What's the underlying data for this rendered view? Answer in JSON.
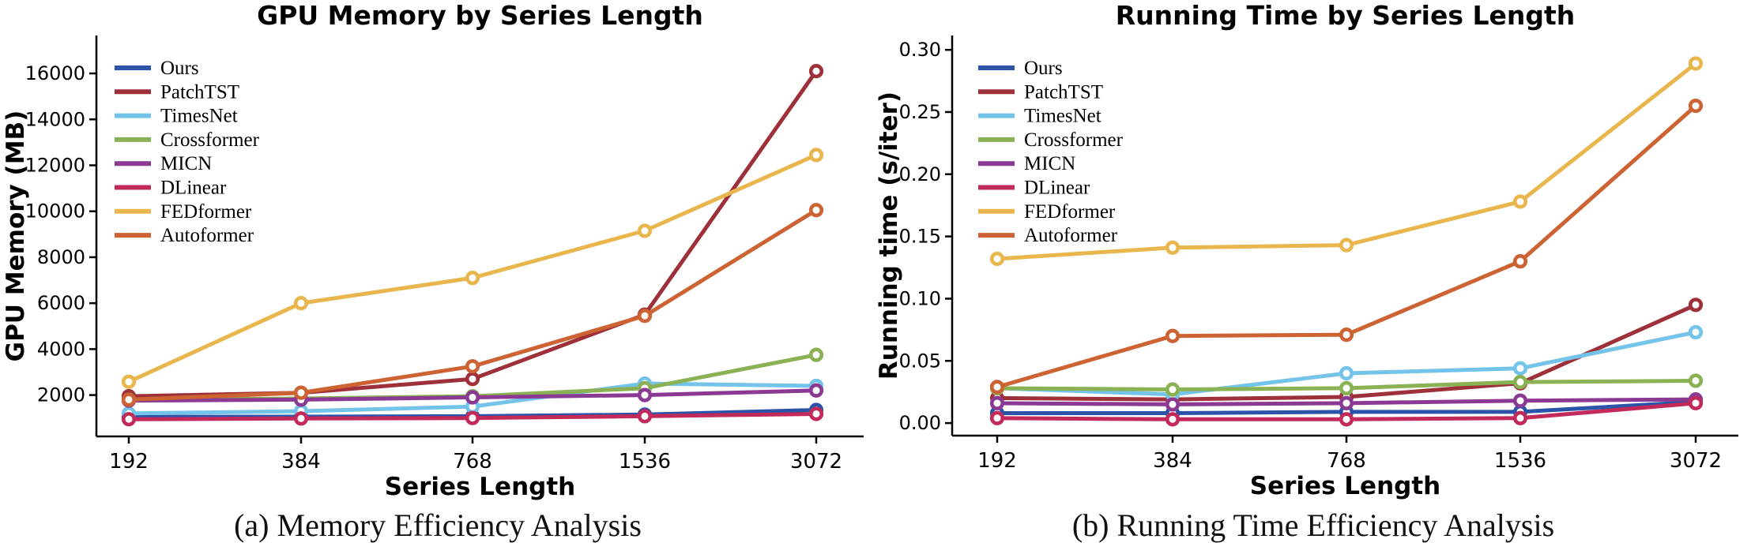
{
  "figure": {
    "background": "#ffffff",
    "captions": [
      "(a) Memory Efficiency Analysis",
      "(b) Running Time Efficiency Analysis"
    ]
  },
  "chart_data": [
    {
      "type": "line",
      "title": "GPU Memory by Series Length",
      "xlabel": "Series Length",
      "ylabel": "GPU Memory (MB)",
      "categories": [
        "192",
        "384",
        "768",
        "1536",
        "3072"
      ],
      "yticks": {
        "values": [
          2000,
          4000,
          6000,
          8000,
          10000,
          12000,
          14000,
          16000
        ],
        "labels": [
          "2000",
          "4000",
          "6000",
          "8000",
          "10000",
          "12000",
          "14000",
          "16000"
        ]
      },
      "ylim": [
        200,
        17650
      ],
      "grid": false,
      "legend_position": "upper left",
      "marker": "circle-open",
      "caption": "(a) Memory Efficiency Analysis",
      "series": [
        {
          "name": "Ours",
          "color": "#2b54a8",
          "values": [
            1050,
            1060,
            1080,
            1150,
            1350
          ]
        },
        {
          "name": "PatchTST",
          "color": "#9e3039",
          "values": [
            1950,
            2100,
            2700,
            5500,
            16100
          ]
        },
        {
          "name": "TimesNet",
          "color": "#74c3e8",
          "values": [
            1200,
            1300,
            1500,
            2500,
            2400
          ]
        },
        {
          "name": "Crossformer",
          "color": "#8ab254",
          "values": [
            1800,
            1850,
            1950,
            2300,
            3750
          ]
        },
        {
          "name": "MICN",
          "color": "#8a3a92",
          "values": [
            1760,
            1800,
            1900,
            2000,
            2200
          ]
        },
        {
          "name": "DLinear",
          "color": "#c22a5a",
          "values": [
            950,
            980,
            1000,
            1080,
            1180
          ]
        },
        {
          "name": "FEDformer",
          "color": "#e9b64d",
          "values": [
            2580,
            6000,
            7100,
            9150,
            12450
          ]
        },
        {
          "name": "Autoformer",
          "color": "#cd6232",
          "values": [
            1800,
            2100,
            3250,
            5450,
            10050
          ]
        }
      ]
    },
    {
      "type": "line",
      "title": "Running Time by Series Length",
      "xlabel": "Series Length",
      "ylabel": "Running time (s/iter)",
      "categories": [
        "192",
        "384",
        "768",
        "1536",
        "3072"
      ],
      "yticks": {
        "values": [
          0.0,
          0.05,
          0.1,
          0.15,
          0.2,
          0.25,
          0.3
        ],
        "labels": [
          "0.00",
          "0.05",
          "0.10",
          "0.15",
          "0.20",
          "0.25",
          "0.30"
        ]
      },
      "ylim": [
        -0.0101,
        0.3115
      ],
      "grid": false,
      "legend_position": "upper left",
      "marker": "circle-open",
      "caption": "(b) Running Time Efficiency Analysis",
      "series": [
        {
          "name": "Ours",
          "color": "#2b54a8",
          "values": [
            0.008,
            0.008,
            0.009,
            0.009,
            0.017
          ]
        },
        {
          "name": "PatchTST",
          "color": "#9e3039",
          "values": [
            0.02,
            0.019,
            0.021,
            0.032,
            0.095
          ]
        },
        {
          "name": "TimesNet",
          "color": "#74c3e8",
          "values": [
            0.028,
            0.023,
            0.04,
            0.044,
            0.073
          ]
        },
        {
          "name": "Crossformer",
          "color": "#8ab254",
          "values": [
            0.028,
            0.027,
            0.028,
            0.033,
            0.034
          ]
        },
        {
          "name": "MICN",
          "color": "#8a3a92",
          "values": [
            0.016,
            0.015,
            0.016,
            0.018,
            0.019
          ]
        },
        {
          "name": "DLinear",
          "color": "#c22a5a",
          "values": [
            0.004,
            0.003,
            0.003,
            0.004,
            0.016
          ]
        },
        {
          "name": "FEDformer",
          "color": "#e9b64d",
          "values": [
            0.132,
            0.141,
            0.143,
            0.178,
            0.289
          ]
        },
        {
          "name": "Autoformer",
          "color": "#cd6232",
          "values": [
            0.029,
            0.07,
            0.071,
            0.13,
            0.255
          ]
        }
      ]
    }
  ]
}
